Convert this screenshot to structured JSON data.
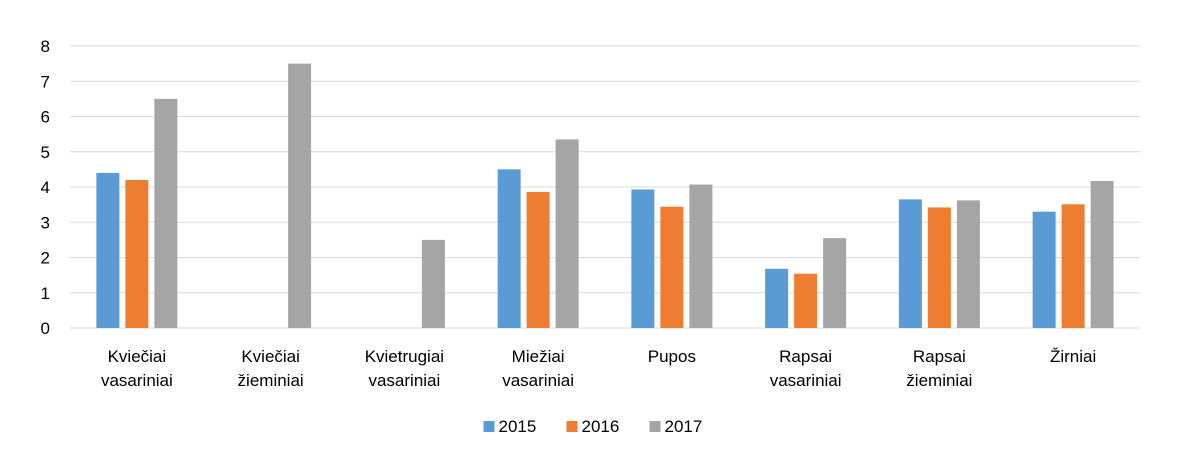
{
  "chart_data": {
    "type": "bar",
    "categories": [
      [
        "Kviečiai",
        "vasariniai"
      ],
      [
        "Kviečiai",
        "žieminiai"
      ],
      [
        "Kvietrugiai",
        "vasariniai"
      ],
      [
        "Miežiai",
        "vasariniai"
      ],
      [
        "Pupos"
      ],
      [
        "Rapsai",
        "vasariniai"
      ],
      [
        "Rapsai",
        "žieminiai"
      ],
      [
        "Žirniai"
      ]
    ],
    "series": [
      {
        "name": "2015",
        "color": "#5b9bd5",
        "values": [
          4.4,
          null,
          null,
          4.5,
          3.93,
          1.68,
          3.65,
          3.3
        ]
      },
      {
        "name": "2016",
        "color": "#ed7d31",
        "values": [
          4.2,
          null,
          null,
          3.86,
          3.44,
          1.54,
          3.42,
          3.51
        ]
      },
      {
        "name": "2017",
        "color": "#a5a5a5",
        "values": [
          6.5,
          7.5,
          2.5,
          5.35,
          4.07,
          2.55,
          3.62,
          4.17
        ]
      }
    ],
    "ylim": [
      0,
      8
    ],
    "yticks": [
      "0",
      "1",
      "2",
      "3",
      "4",
      "5",
      "6",
      "7",
      "8"
    ],
    "grid": true,
    "legend_position": "bottom"
  }
}
